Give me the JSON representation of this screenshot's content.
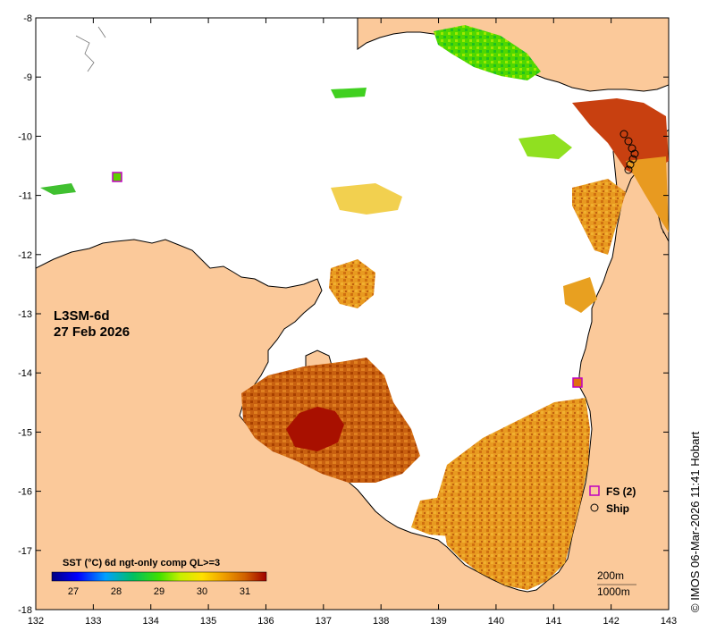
{
  "map": {
    "product": "L3SM-6d",
    "date": "27 Feb 2026",
    "lon_ticks": [
      "132",
      "133",
      "134",
      "135",
      "136",
      "137",
      "138",
      "139",
      "140",
      "141",
      "142",
      "143"
    ],
    "lat_ticks": [
      "-8",
      "-9",
      "-10",
      "-11",
      "-12",
      "-13",
      "-14",
      "-15",
      "-16",
      "-17",
      "-18"
    ],
    "land_color": "#fbc99a",
    "ocean_color": "#ffffff"
  },
  "colorbar": {
    "title": "SST (°C) 6d ngt-only comp QL>=3",
    "ticks": [
      "27",
      "28",
      "29",
      "30",
      "31"
    ],
    "range": [
      26.5,
      31.5
    ]
  },
  "legend": {
    "fs_label": "FS (2)",
    "ship_label": "Ship"
  },
  "contours": {
    "c200": "200m",
    "c1000": "1000m"
  },
  "credit": "© IMOS 06-Mar-2026 11:41 Hobart",
  "icons": {
    "fs_marker": "square-magenta-outline",
    "ship_marker": "circle-outline"
  }
}
